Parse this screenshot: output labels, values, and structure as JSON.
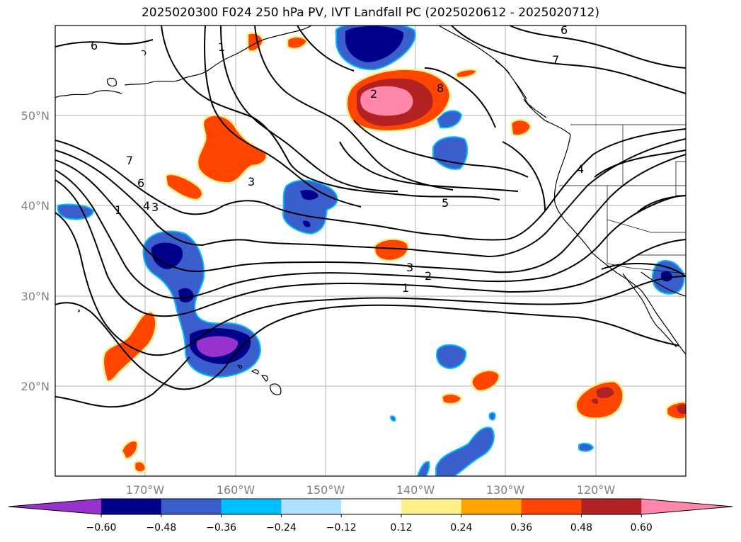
{
  "title": "2025020300 F024 250 hPa PV, IVT Landfall PC (2025020612 - 2025020712)",
  "map": {
    "lat_ticks": [
      "50°N",
      "40°N",
      "30°N",
      "20°N"
    ],
    "lon_ticks": [
      "170°W",
      "160°W",
      "150°W",
      "140°W",
      "130°W",
      "120°W"
    ],
    "contour_labels": [
      "1",
      "2",
      "3",
      "4",
      "5",
      "6",
      "7",
      "8"
    ],
    "contour_labels_shown": [
      "6",
      "1",
      "6",
      "7",
      "8",
      "2",
      "4",
      "3",
      "5",
      "3",
      "2",
      "1",
      "1",
      "6",
      "7",
      "4",
      "3"
    ]
  },
  "colorbar": {
    "tick_labels": [
      "−0.60",
      "−0.48",
      "−0.36",
      "−0.24",
      "−0.12",
      "0.12",
      "0.24",
      "0.36",
      "0.48",
      "0.60"
    ],
    "colors": [
      "#9932cc",
      "#00008b",
      "#3a5fcd",
      "#00bfff",
      "#b0e2ff",
      "#ffffff",
      "#fff08c",
      "#ffa500",
      "#ff4500",
      "#b22222",
      "#ff88aa"
    ]
  },
  "palette": {
    "neg_outer": "#3a5fcd",
    "neg_mid": "#00008b",
    "neg_extreme": "#9932cc",
    "neg_edge": "#00bfff",
    "pos_outer": "#ff4500",
    "pos_mid": "#b22222",
    "pos_extreme": "#ff88aa",
    "pos_edge": "#ffa500",
    "pos_rim": "#fff08c"
  }
}
